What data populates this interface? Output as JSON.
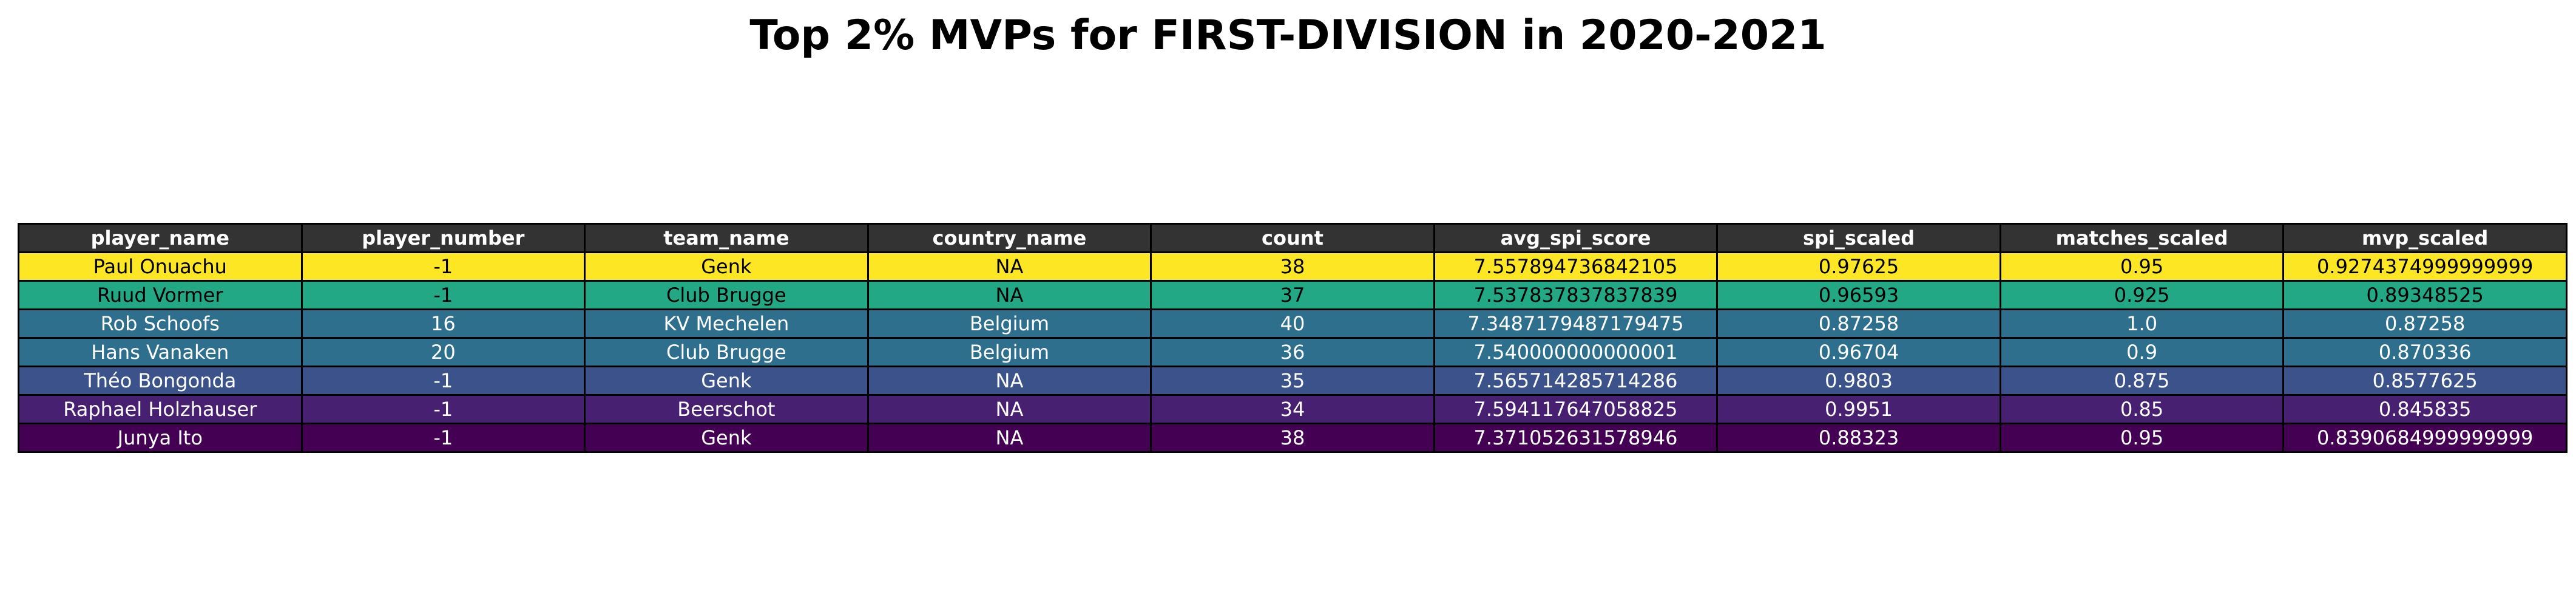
{
  "title": "Top 2% MVPs for FIRST-DIVISION in 2020-2021",
  "chart_data": {
    "type": "table",
    "title": "Top 2% MVPs for FIRST-DIVISION in 2020-2021",
    "columns": [
      "player_name",
      "player_number",
      "team_name",
      "country_name",
      "count",
      "avg_spi_score",
      "spi_scaled",
      "matches_scaled",
      "mvp_scaled"
    ],
    "rows": [
      {
        "cells": [
          "Paul Onuachu",
          "-1",
          "Genk",
          "NA",
          "38",
          "7.557894736842105",
          "0.97625",
          "0.95",
          "0.9274374999999999"
        ],
        "bg": "#fde725",
        "fg": "#000000"
      },
      {
        "cells": [
          "Ruud Vormer",
          "-1",
          "Club Brugge",
          "NA",
          "37",
          "7.537837837837839",
          "0.96593",
          "0.925",
          "0.89348525"
        ],
        "bg": "#22a884",
        "fg": "#000000"
      },
      {
        "cells": [
          "Rob Schoofs",
          "16",
          "KV Mechelen",
          "Belgium",
          "40",
          "7.3487179487179475",
          "0.87258",
          "1.0",
          "0.87258"
        ],
        "bg": "#2e6f8e",
        "fg": "#ffffff"
      },
      {
        "cells": [
          "Hans Vanaken",
          "20",
          "Club Brugge",
          "Belgium",
          "36",
          "7.540000000000001",
          "0.96704",
          "0.9",
          "0.870336"
        ],
        "bg": "#2e6f8e",
        "fg": "#ffffff"
      },
      {
        "cells": [
          "Théo Bongonda",
          "-1",
          "Genk",
          "NA",
          "35",
          "7.565714285714286",
          "0.9803",
          "0.875",
          "0.8577625"
        ],
        "bg": "#3b528b",
        "fg": "#ffffff"
      },
      {
        "cells": [
          "Raphael Holzhauser",
          "-1",
          "Beerschot",
          "NA",
          "34",
          "7.594117647058825",
          "0.9951",
          "0.85",
          "0.845835"
        ],
        "bg": "#482071",
        "fg": "#ffffff"
      },
      {
        "cells": [
          "Junya Ito",
          "-1",
          "Genk",
          "NA",
          "38",
          "7.371052631578946",
          "0.88323",
          "0.95",
          "0.8390684999999999"
        ],
        "bg": "#440154",
        "fg": "#ffffff"
      }
    ]
  }
}
